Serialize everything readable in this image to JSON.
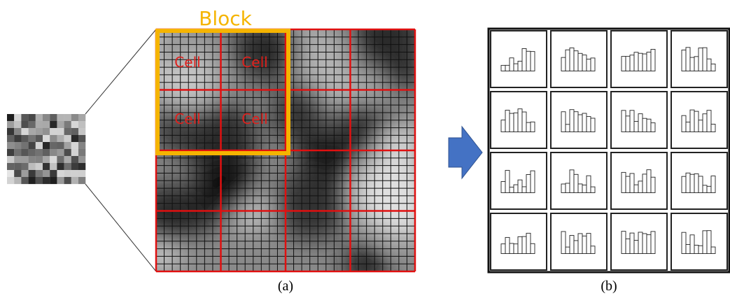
{
  "block_label": "Block",
  "cells": [
    "Cell",
    "Cell",
    "Cell",
    "Cell"
  ],
  "captions": {
    "a": "(a)",
    "b": "(b)"
  }
}
